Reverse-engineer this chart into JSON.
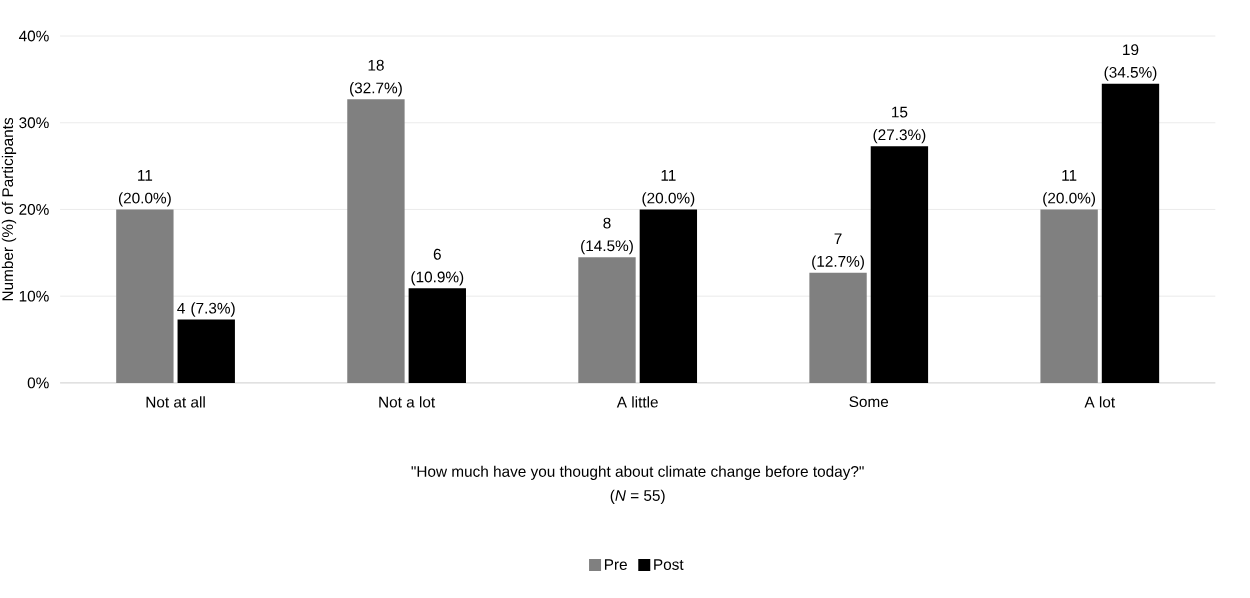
{
  "chart_data": {
    "type": "bar",
    "xlabel": "\"How much have you thought about climate change before today?\"",
    "ylabel": "Number (%) of Participants",
    "annotations": [
      "(*N* = 55)"
    ],
    "categories": [
      "Not at all",
      "Not a lot",
      "A little",
      "Some",
      "A lot"
    ],
    "series": [
      {
        "name": "Pre",
        "color": "#808080",
        "values": [
          20.0,
          32.7,
          14.5,
          12.7,
          20.0
        ],
        "value_labels": [
          "11 (20.0%)",
          "18 (32.7%)",
          "8 (14.5%)",
          "7 (12.7%)",
          "11 (20.0%)"
        ]
      },
      {
        "name": "Post",
        "color": "#000000",
        "values": [
          7.3,
          10.9,
          20.0,
          27.3,
          34.5
        ],
        "value_labels": [
          "4 (7.3%)",
          "6 (10.9%)",
          "11 (20.0%)",
          "15 (27.3%)",
          "19 (34.5%)"
        ]
      }
    ],
    "ylim": [
      0,
      40
    ],
    "yticks": [
      {
        "value": 0,
        "label": "0%"
      },
      {
        "value": 10,
        "label": "10%"
      },
      {
        "value": 20,
        "label": "20%"
      },
      {
        "value": 30,
        "label": "30%"
      },
      {
        "value": 40,
        "label": "40%"
      }
    ],
    "grid": "y",
    "legend": "bottom"
  }
}
